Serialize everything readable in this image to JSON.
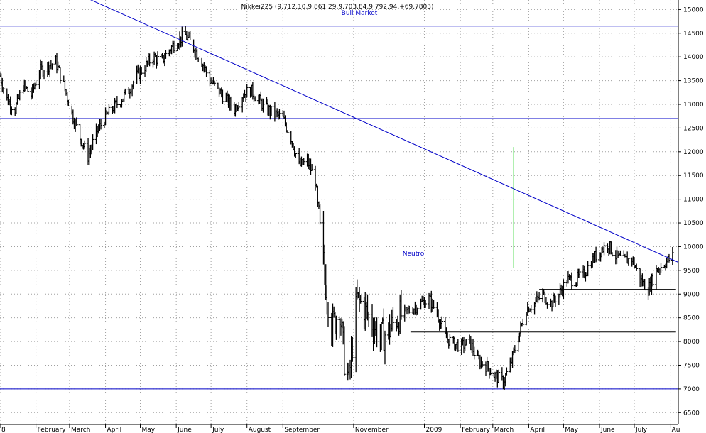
{
  "colors": {
    "background": "#ffffff",
    "grid": "#a0a0a0",
    "price": "#000000",
    "trendline": "#0000c8",
    "level": "#0000c8",
    "support": "#000000",
    "marker": "#00cc00",
    "annotation": "#0000c8"
  },
  "chart_data": {
    "type": "ohlc",
    "title": "Nikkei225 (9,712.10,9,861.29,9,703.84,9,792.94,+69.7803)",
    "annotations": [
      "Bull Market",
      "Neutro"
    ],
    "x_ticks": [
      "8",
      "February",
      "March",
      "April",
      "May",
      "June",
      "July",
      "August",
      "September",
      "November",
      "2009",
      "February",
      "March",
      "April",
      "May",
      "June",
      "July",
      "Au"
    ],
    "y_ticks": [
      6500,
      7000,
      7500,
      8000,
      8500,
      9000,
      9500,
      10000,
      10500,
      11000,
      11500,
      12000,
      12500,
      13000,
      13500,
      14000,
      14500,
      15000
    ],
    "ylim": [
      6250,
      15200
    ],
    "xlim": [
      "2008-01-01",
      "2009-08-08"
    ],
    "grid": true,
    "y_axis_side": "right",
    "horizontal_levels": [
      14650,
      12700,
      9550,
      7000
    ],
    "support_lines": [
      {
        "from": "2008-12-20",
        "to": "2009-08-06",
        "y": 8200
      },
      {
        "from": "2009-04-10",
        "to": "2009-08-06",
        "y": 9100
      }
    ],
    "trendline": {
      "from": {
        "x": "2008-03-15",
        "y": 15250
      },
      "to": {
        "x": "2009-08-08",
        "y": 9670
      }
    },
    "vertical_marker": {
      "x": "2009-03-19",
      "y_from": 9550,
      "y_to": 12100
    },
    "last": {
      "open": 9712.1,
      "high": 9861.29,
      "low": 9703.84,
      "close": 9792.94,
      "change": 69.7803
    },
    "series_dates": [
      "2008-01-01",
      "2008-01-07",
      "2008-01-14",
      "2008-01-21",
      "2008-01-28",
      "2008-02-04",
      "2008-02-11",
      "2008-02-18",
      "2008-02-25",
      "2008-03-03",
      "2008-03-10",
      "2008-03-17",
      "2008-03-24",
      "2008-03-31",
      "2008-04-07",
      "2008-04-14",
      "2008-04-21",
      "2008-04-28",
      "2008-05-05",
      "2008-05-12",
      "2008-05-19",
      "2008-05-26",
      "2008-06-02",
      "2008-06-09",
      "2008-06-16",
      "2008-06-23",
      "2008-06-30",
      "2008-07-07",
      "2008-07-14",
      "2008-07-21",
      "2008-07-28",
      "2008-08-04",
      "2008-08-11",
      "2008-08-18",
      "2008-08-25",
      "2008-09-01",
      "2008-09-08",
      "2008-09-15",
      "2008-09-22",
      "2008-09-29",
      "2008-10-03",
      "2008-10-08",
      "2008-10-13",
      "2008-10-20",
      "2008-10-24",
      "2008-10-28",
      "2008-11-04",
      "2008-11-10",
      "2008-11-17",
      "2008-11-24",
      "2008-12-01",
      "2008-12-08",
      "2008-12-15",
      "2008-12-22",
      "2008-12-29",
      "2009-01-05",
      "2009-01-12",
      "2009-01-19",
      "2009-01-26",
      "2009-02-02",
      "2009-02-09",
      "2009-02-16",
      "2009-02-23",
      "2009-03-02",
      "2009-03-10",
      "2009-03-16",
      "2009-03-23",
      "2009-03-30",
      "2009-04-06",
      "2009-04-13",
      "2009-04-20",
      "2009-04-27",
      "2009-05-04",
      "2009-05-11",
      "2009-05-18",
      "2009-05-25",
      "2009-06-01",
      "2009-06-08",
      "2009-06-15",
      "2009-06-22",
      "2009-06-29",
      "2009-07-06",
      "2009-07-13",
      "2009-07-20",
      "2009-07-27",
      "2009-08-03"
    ],
    "series_closes": [
      13600,
      13100,
      12900,
      13400,
      13200,
      13700,
      13800,
      13900,
      13400,
      12800,
      12300,
      11900,
      12400,
      12700,
      12900,
      13100,
      13300,
      13600,
      13800,
      14000,
      13900,
      14150,
      14350,
      14450,
      14200,
      13900,
      13500,
      13300,
      13100,
      12900,
      13200,
      13300,
      13100,
      12900,
      12800,
      12700,
      12300,
      11700,
      11800,
      11400,
      10300,
      9200,
      8300,
      8700,
      7600,
      7200,
      8900,
      8700,
      8400,
      8100,
      8200,
      8500,
      8600,
      8700,
      8800,
      8900,
      8600,
      8100,
      7950,
      7900,
      8000,
      7600,
      7500,
      7300,
      7150,
      7500,
      8100,
      8700,
      8800,
      9000,
      8800,
      9000,
      9300,
      9300,
      9400,
      9700,
      9900,
      10050,
      9800,
      9700,
      9750,
      9300,
      9100,
      9500,
      9650,
      9790
    ]
  }
}
